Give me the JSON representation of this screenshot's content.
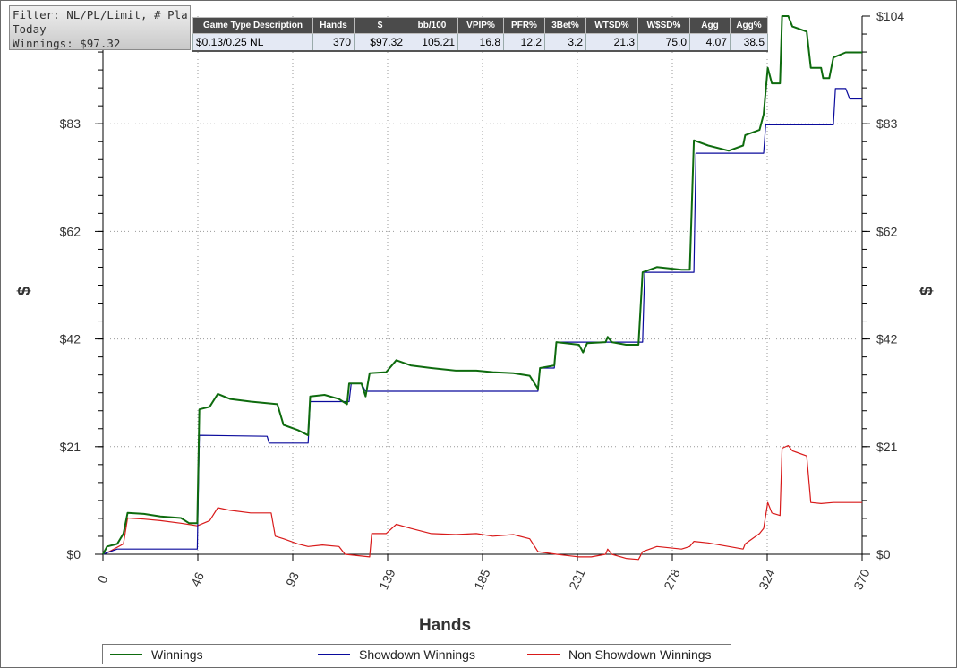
{
  "filter": {
    "line1": "Filter: NL/PL/Limit, # Players",
    "line2": "Today",
    "line3": "Winnings: $97.32"
  },
  "stats_table": {
    "headers": [
      "Game Type Description",
      "Hands",
      "$",
      "bb/100",
      "VPIP%",
      "PFR%",
      "3Bet%",
      "WTSD%",
      "W$SD%",
      "Agg",
      "Agg%"
    ],
    "row": [
      "$0.13/0.25 NL",
      "370",
      "$97.32",
      "105.21",
      "16.8",
      "12.2",
      "3.2",
      "21.3",
      "75.0",
      "4.07",
      "38.5"
    ]
  },
  "legend": {
    "items": [
      {
        "label": "Winnings",
        "color": "#0e6b0e"
      },
      {
        "label": "Showdown Winnings",
        "color": "#0a0a9c"
      },
      {
        "label": "Non Showdown Winnings",
        "color": "#d81a1a"
      }
    ]
  },
  "chart_data": {
    "type": "line",
    "title": "",
    "xlabel": "Hands",
    "ylabel": "$",
    "xlim": [
      0,
      370
    ],
    "ylim": [
      0,
      104
    ],
    "x_ticks": [
      "0",
      "46",
      "93",
      "139",
      "185",
      "231",
      "278",
      "324",
      "370"
    ],
    "y_ticks": [
      "$0",
      "$21",
      "$42",
      "$62",
      "$83",
      "$104"
    ],
    "grid": true,
    "legend_position": "bottom",
    "series": [
      {
        "name": "Winnings",
        "color": "#0e6b0e",
        "points": [
          [
            0,
            0
          ],
          [
            2,
            1.5
          ],
          [
            7,
            2
          ],
          [
            10,
            4
          ],
          [
            12,
            8
          ],
          [
            20,
            7.8
          ],
          [
            28,
            7.3
          ],
          [
            38,
            7
          ],
          [
            42,
            6
          ],
          [
            46,
            6
          ],
          [
            47,
            28
          ],
          [
            52,
            28.5
          ],
          [
            56,
            31
          ],
          [
            62,
            30
          ],
          [
            72,
            29.5
          ],
          [
            85,
            29
          ],
          [
            88,
            25
          ],
          [
            95,
            24
          ],
          [
            100,
            23
          ],
          [
            101,
            30.5
          ],
          [
            108,
            30.8
          ],
          [
            115,
            30
          ],
          [
            119,
            29
          ],
          [
            120,
            33
          ],
          [
            126,
            33
          ],
          [
            128,
            30.5
          ],
          [
            130,
            35
          ],
          [
            138,
            35.2
          ],
          [
            143,
            37.5
          ],
          [
            150,
            36.5
          ],
          [
            160,
            36
          ],
          [
            172,
            35.5
          ],
          [
            182,
            35.5
          ],
          [
            190,
            35.2
          ],
          [
            200,
            35
          ],
          [
            208,
            34.5
          ],
          [
            212,
            32
          ],
          [
            213,
            36
          ],
          [
            220,
            36.5
          ],
          [
            221,
            41
          ],
          [
            232,
            40.5
          ],
          [
            234,
            39
          ],
          [
            236,
            40.8
          ],
          [
            245,
            41
          ],
          [
            246,
            42
          ],
          [
            248,
            41
          ],
          [
            255,
            40.5
          ],
          [
            261,
            40.5
          ],
          [
            263,
            54.5
          ],
          [
            270,
            55.5
          ],
          [
            282,
            55
          ],
          [
            286,
            55
          ],
          [
            288,
            80
          ],
          [
            295,
            79
          ],
          [
            305,
            78
          ],
          [
            312,
            79
          ],
          [
            313,
            81
          ],
          [
            320,
            82
          ],
          [
            322,
            85
          ],
          [
            324,
            94
          ],
          [
            326,
            91
          ],
          [
            330,
            91
          ],
          [
            331,
            104
          ],
          [
            334,
            104
          ],
          [
            336,
            102
          ],
          [
            343,
            101
          ],
          [
            345,
            94
          ],
          [
            350,
            94
          ],
          [
            351,
            92
          ],
          [
            354,
            92
          ],
          [
            356,
            96
          ],
          [
            362,
            97
          ],
          [
            364,
            97
          ],
          [
            370,
            97
          ]
        ]
      },
      {
        "name": "Showdown Winnings",
        "color": "#0a0a9c",
        "points": [
          [
            0,
            0
          ],
          [
            7,
            1
          ],
          [
            9,
            1
          ],
          [
            10,
            1
          ],
          [
            40,
            1
          ],
          [
            46,
            1
          ],
          [
            47,
            23
          ],
          [
            80,
            22.8
          ],
          [
            81,
            21.5
          ],
          [
            100,
            21.5
          ],
          [
            101,
            29.5
          ],
          [
            120,
            29.5
          ],
          [
            121,
            33
          ],
          [
            126,
            33
          ],
          [
            128,
            31.5
          ],
          [
            212,
            31.5
          ],
          [
            213,
            36
          ],
          [
            220,
            36
          ],
          [
            221,
            41
          ],
          [
            263,
            41
          ],
          [
            264,
            54.5
          ],
          [
            288,
            54.5
          ],
          [
            289,
            77.5
          ],
          [
            322,
            77.5
          ],
          [
            323,
            83
          ],
          [
            356,
            83
          ],
          [
            357,
            90
          ],
          [
            362,
            90
          ],
          [
            364,
            88
          ],
          [
            370,
            88
          ]
        ]
      },
      {
        "name": "Non Showdown Winnings",
        "color": "#d81a1a",
        "points": [
          [
            0,
            0
          ],
          [
            3,
            0.5
          ],
          [
            10,
            2
          ],
          [
            12,
            7
          ],
          [
            20,
            6.8
          ],
          [
            28,
            6.5
          ],
          [
            38,
            6
          ],
          [
            46,
            5.5
          ],
          [
            52,
            6.5
          ],
          [
            56,
            9
          ],
          [
            62,
            8.5
          ],
          [
            72,
            8
          ],
          [
            82,
            8
          ],
          [
            84,
            3.5
          ],
          [
            88,
            3
          ],
          [
            95,
            2
          ],
          [
            100,
            1.5
          ],
          [
            107,
            1.8
          ],
          [
            115,
            1.5
          ],
          [
            118,
            0
          ],
          [
            130,
            -0.5
          ],
          [
            131,
            4
          ],
          [
            138,
            4
          ],
          [
            143,
            5.8
          ],
          [
            150,
            5
          ],
          [
            160,
            4
          ],
          [
            172,
            3.8
          ],
          [
            182,
            4
          ],
          [
            190,
            3.5
          ],
          [
            200,
            3.8
          ],
          [
            208,
            3
          ],
          [
            212,
            0.5
          ],
          [
            221,
            0
          ],
          [
            232,
            -0.5
          ],
          [
            238,
            -0.5
          ],
          [
            245,
            0
          ],
          [
            246,
            1
          ],
          [
            248,
            0
          ],
          [
            255,
            -0.8
          ],
          [
            261,
            -1
          ],
          [
            263,
            0.5
          ],
          [
            270,
            1.5
          ],
          [
            282,
            1
          ],
          [
            286,
            1.5
          ],
          [
            288,
            2.5
          ],
          [
            295,
            2.2
          ],
          [
            305,
            1.5
          ],
          [
            312,
            1
          ],
          [
            313,
            2
          ],
          [
            320,
            4
          ],
          [
            322,
            5
          ],
          [
            324,
            10
          ],
          [
            326,
            8
          ],
          [
            330,
            7.5
          ],
          [
            331,
            20.5
          ],
          [
            334,
            21
          ],
          [
            336,
            20
          ],
          [
            343,
            19
          ],
          [
            345,
            10
          ],
          [
            350,
            9.8
          ],
          [
            356,
            10
          ],
          [
            370,
            10
          ]
        ]
      }
    ]
  }
}
